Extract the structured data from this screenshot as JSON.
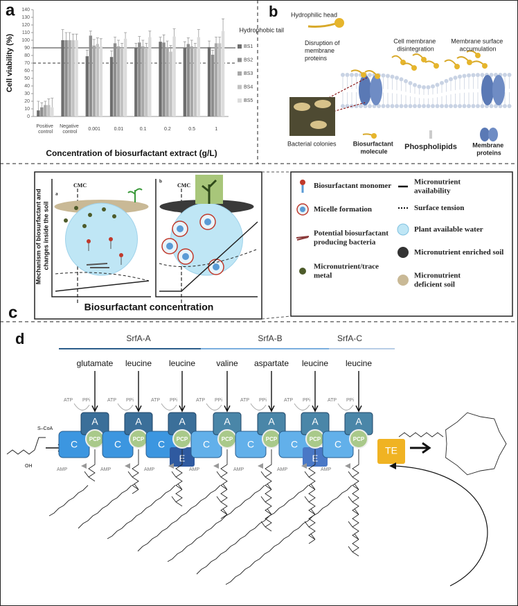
{
  "panel_a": {
    "label": "a"
  },
  "chart_data": {
    "type": "bar",
    "y_label": "Cell viability (%)",
    "x_label": "Concentration of biosurfactant extract (g/L)",
    "categories": [
      "Positive control",
      "Negative control",
      "0.001",
      "0.01",
      "0.1",
      "0.2",
      "0.5",
      "1"
    ],
    "series": [
      {
        "name": "BS1",
        "color": "#6e6e6e",
        "values": [
          8,
          100,
          79,
          78,
          90,
          98,
          90,
          91
        ],
        "errors": [
          12,
          14,
          8,
          8,
          6,
          6,
          8,
          8
        ]
      },
      {
        "name": "BS2",
        "color": "#8e8e8e",
        "values": [
          12,
          100,
          106,
          96,
          97,
          97,
          95,
          81
        ],
        "errors": [
          6,
          10,
          6,
          8,
          8,
          10,
          8,
          6
        ]
      },
      {
        "name": "BS3",
        "color": "#a8a8a8",
        "values": [
          15,
          100,
          93,
          92,
          92,
          91,
          92,
          96
        ],
        "errors": [
          5,
          10,
          8,
          8,
          8,
          8,
          8,
          8
        ]
      },
      {
        "name": "BS4",
        "color": "#c2c2c2",
        "values": [
          15,
          100,
          95,
          90,
          90,
          85,
          90,
          96
        ],
        "errors": [
          8,
          8,
          8,
          6,
          6,
          8,
          6,
          8
        ]
      },
      {
        "name": "BS5",
        "color": "#dcdcdc",
        "values": [
          12,
          100,
          92,
          102,
          104,
          105,
          104,
          112
        ],
        "errors": [
          12,
          8,
          10,
          8,
          8,
          10,
          10,
          16
        ]
      }
    ],
    "ylim": [
      0,
      140
    ],
    "yticks": [
      0,
      10,
      20,
      30,
      40,
      50,
      60,
      70,
      80,
      90,
      100,
      110,
      120,
      130,
      140
    ],
    "reference_lines": [
      {
        "value": 90,
        "style": "solid"
      },
      {
        "value": 70,
        "style": "dashed"
      }
    ],
    "legend": "right"
  },
  "panel_b": {
    "label": "b",
    "texts": [
      "Hydrophilic head",
      "Hydrophobic tail",
      "Disruption of membrane proteins",
      "Cell membrane disintegration",
      "Membrane surface accumulation",
      "Bacterial colonies",
      "Biosurfactant molecule",
      "Phospholipids",
      "Membrane proteins"
    ]
  },
  "panel_c": {
    "label": "c",
    "cmc": "CMC",
    "subplots": [
      "a",
      "b"
    ],
    "y_label": "Mechanism of biosurfactant and changes inside the soil",
    "x_label": "Biosurfactant concentration",
    "legend": [
      "Biosurfactant monomer",
      "Micelle formation",
      "Potential biosurfactant producing bacteria",
      "Micronutrient/trace metal",
      "Micronutrient availability",
      "Surface tension",
      "Plant available water",
      "Micronutrient enriched soil",
      "Micronutrient deficient soil"
    ]
  },
  "panel_d": {
    "label": "d",
    "modules": [
      "SrfA-A",
      "SrfA-B",
      "SrfA-C"
    ],
    "substrates": [
      "glutamate",
      "leucine",
      "leucine",
      "valine",
      "aspartate",
      "leucine",
      "leucine"
    ],
    "domains": {
      "A": "A",
      "C": "C",
      "PCP": "PCP",
      "E": "E",
      "TE": "TE"
    },
    "cofactors": {
      "ATP": "ATP",
      "PPi": "PPi",
      "AMP": "AMP"
    },
    "start": {
      "thioester": "S–CoA",
      "hydroxyl": "OH"
    }
  }
}
